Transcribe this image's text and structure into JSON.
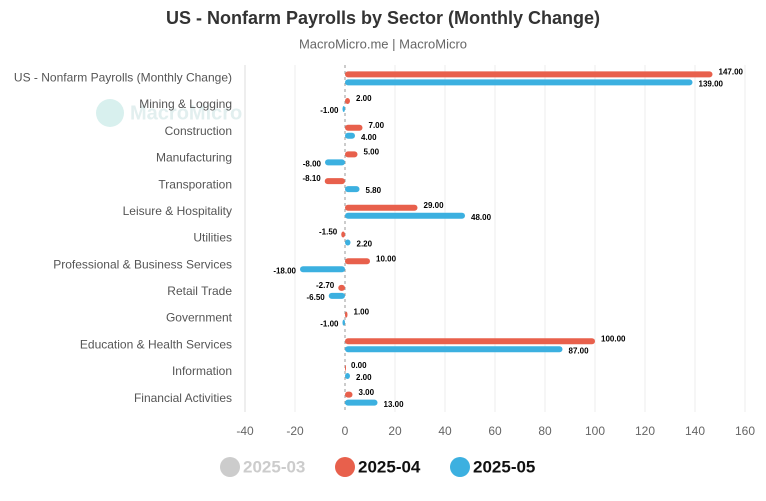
{
  "chart_data": {
    "type": "hbar",
    "title": "US - Nonfarm Payrolls by Sector (Monthly Change)",
    "subtitle": "MacroMicro.me | MacroMicro",
    "watermark": "MacroMicro",
    "categories": [
      "US - Nonfarm Payrolls (Monthly Change)",
      "Mining & Logging",
      "Construction",
      "Manufacturing",
      "Transporation",
      "Leisure & Hospitality",
      "Utilities",
      "Professional & Business Services",
      "Retail Trade",
      "Government",
      "Education & Health Services",
      "Information",
      "Financial Activities"
    ],
    "series": [
      {
        "name": "2025-03",
        "color": "#cccccc",
        "hidden": true,
        "values": [
          null,
          null,
          null,
          null,
          null,
          null,
          null,
          null,
          null,
          null,
          null,
          null,
          null
        ]
      },
      {
        "name": "2025-04",
        "color": "#e8604c",
        "values": [
          147,
          2,
          7,
          5,
          -8.1,
          29,
          -1.5,
          10,
          -2.7,
          1,
          100,
          0,
          3
        ],
        "value_labels": [
          "147.00",
          "2.00",
          "7.00",
          "5.00",
          "-8.10",
          "29.00",
          "-1.50",
          "10.00",
          "-2.70",
          "1.00",
          "100.00",
          "0.00",
          "3.00"
        ]
      },
      {
        "name": "2025-05",
        "color": "#3cb0e0",
        "values": [
          139,
          -1,
          4,
          -8,
          5.8,
          48,
          2.2,
          -18,
          -6.5,
          -1,
          87,
          2,
          13
        ],
        "value_labels": [
          "139.00",
          "-1.00",
          "4.00",
          "-8.00",
          "5.80",
          "48.00",
          "2.20",
          "-18.00",
          "-6.50",
          "-1.00",
          "87.00",
          "2.00",
          "13.00"
        ]
      }
    ],
    "xlim": [
      -40,
      160
    ],
    "xticks": [
      -40,
      -20,
      0,
      20,
      40,
      60,
      80,
      100,
      120,
      140,
      160
    ],
    "grid": true
  }
}
